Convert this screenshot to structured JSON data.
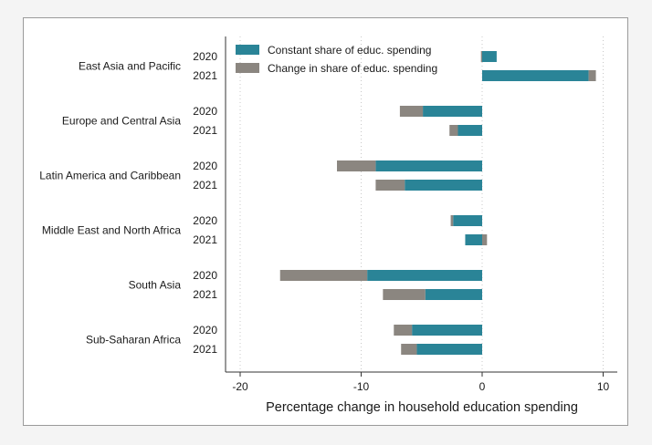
{
  "chart_data": {
    "type": "bar",
    "orientation": "horizontal",
    "stacked": true,
    "xlabel": "Percentage change in household education spending",
    "xlim": [
      -20,
      12
    ],
    "xticks": [
      -20,
      -10,
      0,
      10
    ],
    "grid": "vertical dotted at x ticks",
    "legend_position": "top-right",
    "series": [
      {
        "name": "Constant share of educ. spending",
        "color": "#2a8497"
      },
      {
        "name": "Change in share of educ. spending",
        "color": "#8b8680"
      }
    ],
    "groups": [
      {
        "region": "East Asia and Pacific",
        "rows": [
          {
            "year": "2020",
            "constant": 1.2,
            "change": -0.1
          },
          {
            "year": "2021",
            "constant": 8.8,
            "change": 0.6
          }
        ]
      },
      {
        "region": "Europe and Central Asia",
        "rows": [
          {
            "year": "2020",
            "constant": -4.9,
            "change": -1.9
          },
          {
            "year": "2021",
            "constant": -2.0,
            "change": -0.7
          }
        ]
      },
      {
        "region": "Latin America and Caribbean",
        "rows": [
          {
            "year": "2020",
            "constant": -8.8,
            "change": -3.2
          },
          {
            "year": "2021",
            "constant": -6.4,
            "change": -2.4
          }
        ]
      },
      {
        "region": "Middle East and North Africa",
        "rows": [
          {
            "year": "2020",
            "constant": -2.4,
            "change": -0.2
          },
          {
            "year": "2021",
            "constant": -1.4,
            "change": 0.4
          }
        ]
      },
      {
        "region": "South Asia",
        "rows": [
          {
            "year": "2020",
            "constant": -9.5,
            "change": -7.2
          },
          {
            "year": "2021",
            "constant": -4.7,
            "change": -3.5
          }
        ]
      },
      {
        "region": "Sub-Saharan Africa",
        "rows": [
          {
            "year": "2020",
            "constant": -5.8,
            "change": -1.5
          },
          {
            "year": "2021",
            "constant": -5.4,
            "change": -1.3
          }
        ]
      }
    ]
  }
}
